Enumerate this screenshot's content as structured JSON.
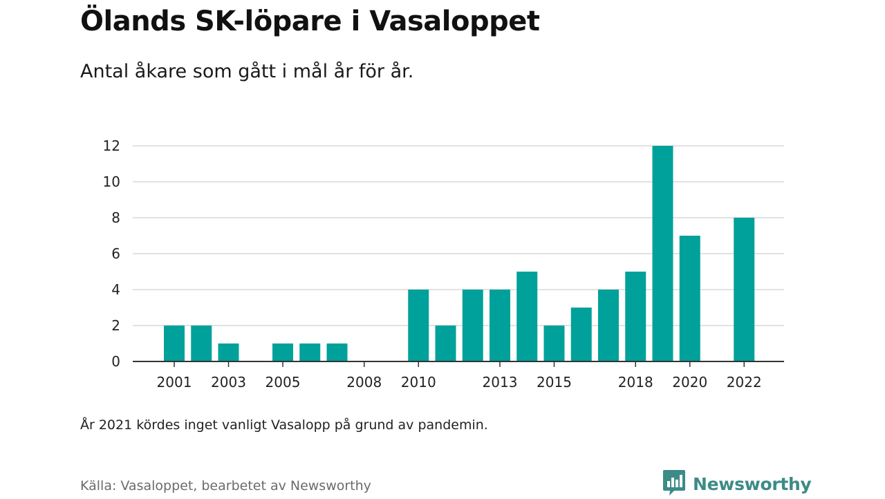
{
  "title": "Ölands SK-löpare i Vasaloppet",
  "subtitle": "Antal åkare som gått i mål år för år.",
  "note": "År 2021 kördes inget vanligt Vasalopp på grund av pandemin.",
  "source": "Källa: Vasaloppet, bearbetet av Newsworthy",
  "brand": {
    "name": "Newsworthy",
    "icon": "newsworthy-logo-icon",
    "color": "#3d8b87"
  },
  "chart_data": {
    "type": "bar",
    "title": "Ölands SK-löpare i Vasaloppet",
    "subtitle": "Antal åkare som gått i mål år för år.",
    "xlabel": "",
    "ylabel": "",
    "categories": [
      "2001",
      "2002",
      "2003",
      "2004",
      "2005",
      "2006",
      "2007",
      "2008",
      "2009",
      "2010",
      "2011",
      "2012",
      "2013",
      "2014",
      "2015",
      "2016",
      "2017",
      "2018",
      "2019",
      "2020",
      "2021",
      "2022"
    ],
    "values": [
      2,
      2,
      1,
      0,
      1,
      1,
      1,
      0,
      0,
      4,
      2,
      4,
      4,
      5,
      2,
      3,
      4,
      5,
      12,
      7,
      0,
      8
    ],
    "x_tick_labels": [
      "2001",
      "2003",
      "2005",
      "2008",
      "2010",
      "2013",
      "2015",
      "2018",
      "2020",
      "2022"
    ],
    "y_ticks": [
      0,
      2,
      4,
      6,
      8,
      10,
      12
    ],
    "ylim": [
      0,
      12
    ],
    "grid": true,
    "bar_color": "#00a19a"
  }
}
